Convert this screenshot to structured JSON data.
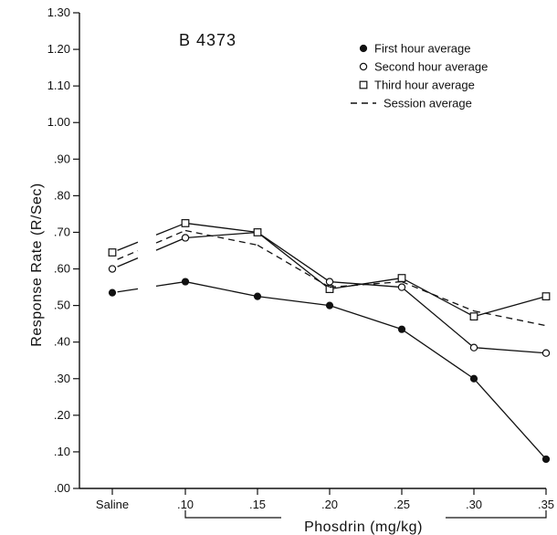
{
  "chart_data": {
    "type": "line",
    "title": "B 4373",
    "xlabel": "Phosdrin (mg/kg)",
    "ylabel": "Response Rate (R/Sec)",
    "categories": [
      "Saline",
      ".10",
      ".15",
      ".20",
      ".25",
      ".30",
      ".35"
    ],
    "yticks": [
      ".00",
      ".10",
      ".20",
      ".30",
      ".40",
      ".50",
      ".60",
      ".70",
      ".80",
      ".90",
      "1.00",
      "1.10",
      "1.20",
      "1.30"
    ],
    "ylim": [
      0,
      1.3
    ],
    "legend_position": "top-right",
    "grid": false,
    "series": [
      {
        "name": "First hour average",
        "marker": "filled-circle",
        "dash": "solid",
        "values": [
          0.535,
          0.565,
          0.525,
          0.5,
          0.435,
          0.3,
          0.08
        ]
      },
      {
        "name": "Second hour average",
        "marker": "open-circle",
        "dash": "solid",
        "values": [
          0.6,
          0.685,
          0.7,
          0.565,
          0.55,
          0.385,
          0.37
        ]
      },
      {
        "name": "Third hour average",
        "marker": "open-square",
        "dash": "solid",
        "values": [
          0.645,
          0.725,
          0.7,
          0.545,
          0.575,
          0.47,
          0.525
        ]
      },
      {
        "name": "Session average",
        "marker": "none",
        "dash": "dashed",
        "values": [
          0.62,
          0.705,
          0.665,
          0.55,
          0.565,
          0.485,
          0.445
        ]
      }
    ],
    "colors": {
      "ink": "#111111",
      "background": "#ffffff"
    }
  }
}
